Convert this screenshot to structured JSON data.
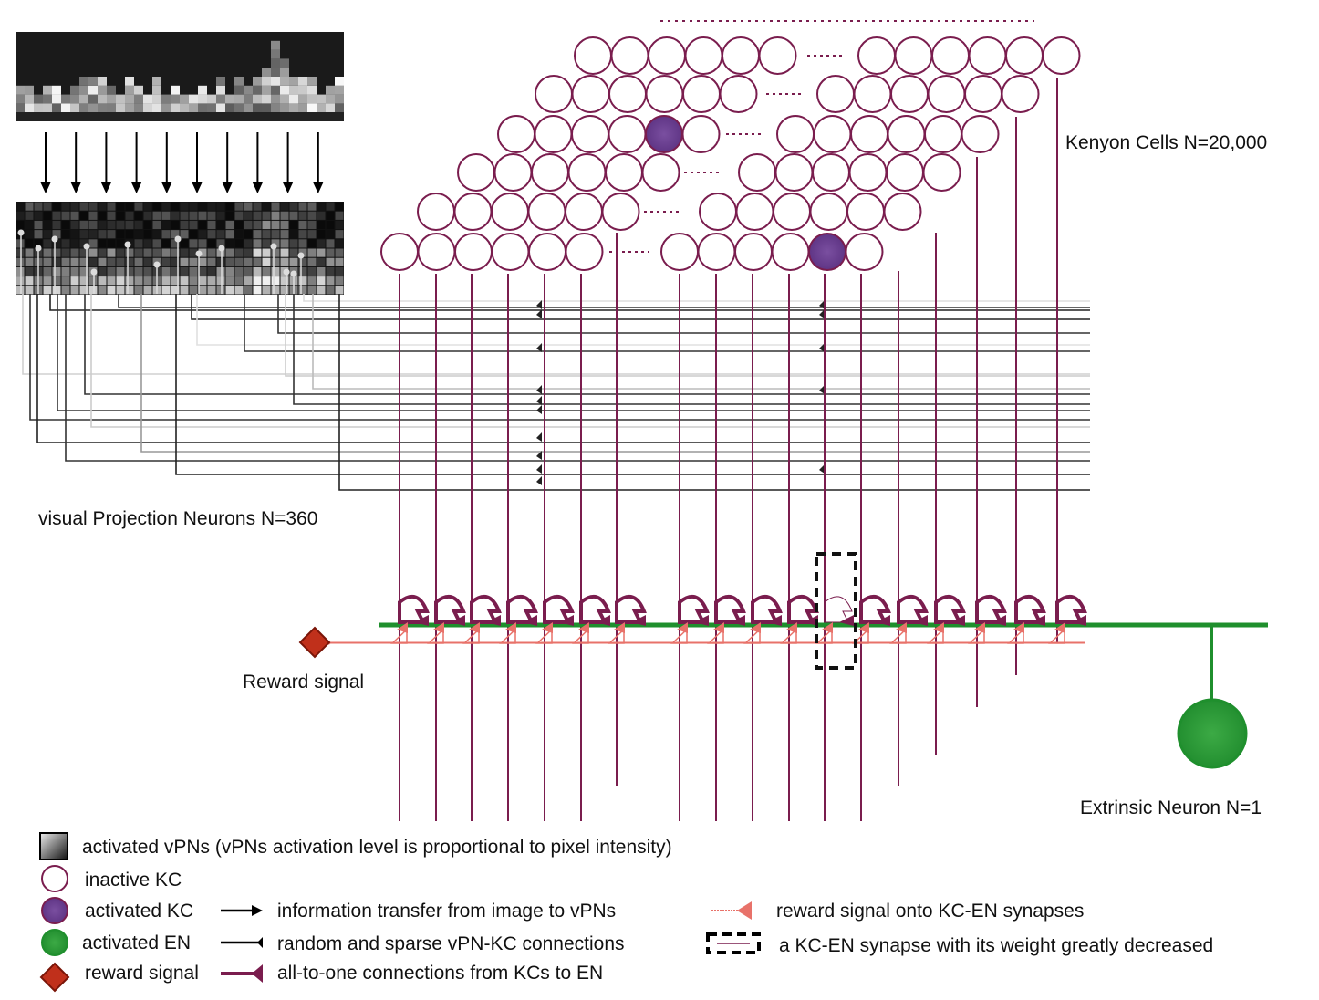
{
  "labels": {
    "kenyon_cells": "Kenyon Cells N=20,000",
    "vpn": "visual Projection Neurons N=360",
    "reward": "Reward signal",
    "extrinsic": "Extrinsic Neuron N=1"
  },
  "legend": [
    {
      "icon": "gradient-square-icon",
      "text": "activated vPNs (vPNs activation level is proportional to pixel intensity)"
    },
    {
      "icon": "empty-circle-icon",
      "text": "inactive KC"
    },
    {
      "icon": "purple-circle-icon",
      "text": "activated KC"
    },
    {
      "icon": "green-circle-icon",
      "text": "activated EN"
    },
    {
      "icon": "red-diamond-icon",
      "text": "reward signal"
    },
    {
      "icon": "arrow-icon",
      "text": "information transfer from image to vPNs"
    },
    {
      "icon": "line-synapse-icon",
      "text": "random and sparse vPN-KC connections"
    },
    {
      "icon": "thick-synapse-icon",
      "text": "all-to-one connections from KCs to EN"
    },
    {
      "icon": "pink-synapse-icon",
      "text": "reward signal onto KC-EN synapses"
    },
    {
      "icon": "dashed-box-icon",
      "text": "a KC-EN synapse with its weight greatly decreased"
    }
  ],
  "colors": {
    "kc_outline": "#7a1d4e",
    "kc_active": "#6b3f8f",
    "en_green": "#1f8f2d",
    "reward_red": "#c0301b",
    "reward_line": "#e8726a"
  }
}
